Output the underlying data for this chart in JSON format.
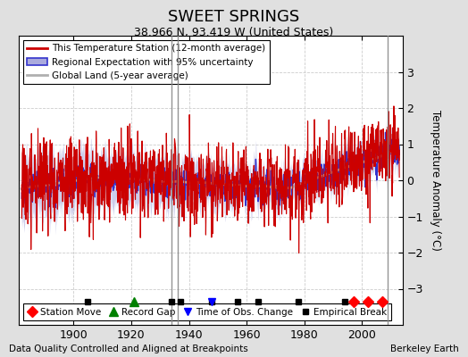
{
  "title": "SWEET SPRINGS",
  "subtitle": "38.966 N, 93.419 W (United States)",
  "ylabel": "Temperature Anomaly (°C)",
  "xlabel_note": "Data Quality Controlled and Aligned at Breakpoints",
  "credit": "Berkeley Earth",
  "ylim": [
    -4,
    4
  ],
  "xlim": [
    1881,
    2014
  ],
  "xticks": [
    1900,
    1920,
    1940,
    1960,
    1980,
    2000
  ],
  "yticks": [
    -3,
    -2,
    -1,
    0,
    1,
    2,
    3
  ],
  "bg_color": "#e0e0e0",
  "plot_bg_color": "#ffffff",
  "grid_color": "#cccccc",
  "station_color": "#cc0000",
  "regional_color": "#3333cc",
  "regional_fill": "#aaaadd",
  "global_color": "#b0b0b0",
  "empirical_breaks": [
    1905,
    1934,
    1937,
    1948,
    1957,
    1964,
    1978,
    1994
  ],
  "station_moves": [
    1997,
    2002,
    2007
  ],
  "record_gaps": [
    1921
  ],
  "tobs_changes": [
    1948
  ],
  "vertical_lines": [
    1934,
    1936,
    2009
  ],
  "seed": 17
}
